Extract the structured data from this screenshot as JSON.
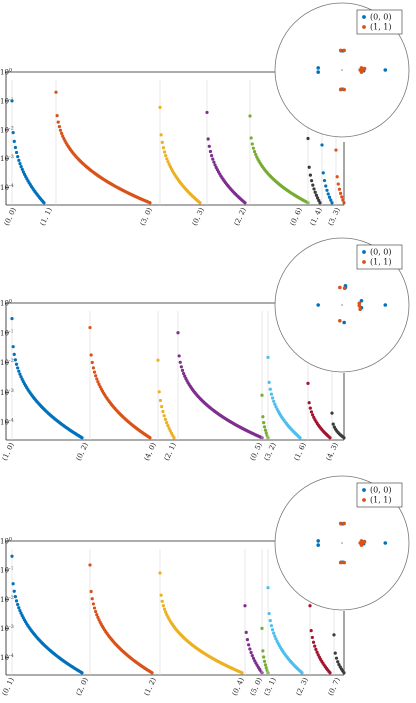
{
  "colors": {
    "blue": "#0072BD",
    "orange": "#D95319",
    "yellow": "#EDB120",
    "purple": "#7E2F8E",
    "green": "#77AC30",
    "cyan": "#4DBEEE",
    "crimson": "#A2142F",
    "gray": "#3a3a3a"
  },
  "chart_data": [
    {
      "type": "scatter",
      "yscale": "log",
      "ytick_labels": [
        "10^0",
        "10^-1",
        "10^-2",
        "10^-3",
        "10^-4"
      ],
      "groups": [
        {
          "label": "(0, 0)",
          "color": "blue",
          "start": 0.1,
          "end": 3e-05
        },
        {
          "label": "(1, 1)",
          "color": "orange",
          "start": 0.2,
          "end": 3e-05
        },
        {
          "label": "(3, 0)",
          "color": "yellow",
          "start": 0.06,
          "end": 3e-05
        },
        {
          "label": "(0, 3)",
          "color": "purple",
          "start": 0.04,
          "end": 3e-05
        },
        {
          "label": "(2, 2)",
          "color": "green",
          "start": 0.03,
          "end": 3e-05
        },
        {
          "label": "(0, 6)",
          "color": "gray",
          "start": 0.005,
          "end": 3e-05
        },
        {
          "label": "(1, 4)",
          "color": "blue",
          "start": 0.003,
          "end": 3e-05
        },
        {
          "label": "(3, 3)",
          "color": "orange",
          "start": 0.002,
          "end": 3e-05
        }
      ],
      "inset": {
        "legend": [
          "(0, 0)",
          "(1, 1)"
        ],
        "points_blue": [
          [
            -0.55,
            0.06
          ],
          [
            -0.55,
            -0.06
          ],
          [
            -0.02,
            0.55
          ],
          [
            0.02,
            0.55
          ],
          [
            -0.02,
            -0.55
          ],
          [
            0.02,
            -0.55
          ],
          [
            0.5,
            0.02
          ],
          [
            0.5,
            -0.02
          ],
          [
            1.0,
            0.0
          ]
        ],
        "points_orange": [
          [
            -0.03,
            0.56
          ],
          [
            0.05,
            0.56
          ],
          [
            -0.03,
            -0.56
          ],
          [
            0.05,
            -0.56
          ],
          [
            0.45,
            0.06
          ],
          [
            0.45,
            -0.06
          ],
          [
            0.48,
            0.0
          ],
          [
            0.52,
            0.04
          ],
          [
            0.42,
            0.0
          ]
        ]
      }
    },
    {
      "type": "scatter",
      "yscale": "log",
      "ytick_labels": [
        "10^0",
        "10^-1",
        "10^-2",
        "10^-3",
        "10^-4"
      ],
      "groups": [
        {
          "label": "(1, 0)",
          "color": "blue",
          "start": 0.3,
          "end": 3e-05
        },
        {
          "label": "(0, 2)",
          "color": "orange",
          "start": 0.15,
          "end": 3e-05
        },
        {
          "label": "(4, 0)",
          "color": "yellow",
          "start": 0.012,
          "end": 3e-05
        },
        {
          "label": "(2, 1)",
          "color": "purple",
          "start": 0.1,
          "end": 3e-05
        },
        {
          "label": "(0, 5)",
          "color": "green",
          "start": 0.0008,
          "end": 3e-05
        },
        {
          "label": "(3, 2)",
          "color": "cyan",
          "start": 0.015,
          "end": 3e-05
        },
        {
          "label": "(1, 6)",
          "color": "crimson",
          "start": 0.002,
          "end": 3e-05
        },
        {
          "label": "(4, 3)",
          "color": "gray",
          "start": 0.0002,
          "end": 3e-05
        }
      ],
      "inset": {
        "legend": [
          "(0, 0)",
          "(1, 1)"
        ],
        "points_blue": [
          [
            -0.55,
            0.0
          ],
          [
            0.08,
            0.55
          ],
          [
            0.08,
            0.5
          ],
          [
            0.05,
            -0.5
          ],
          [
            0.45,
            0.12
          ],
          [
            0.45,
            -0.08
          ],
          [
            1.0,
            0.0
          ]
        ],
        "points_orange": [
          [
            -0.05,
            0.5
          ],
          [
            0.06,
            0.48
          ],
          [
            -0.05,
            -0.45
          ],
          [
            0.4,
            0.05
          ],
          [
            0.42,
            -0.12
          ],
          [
            0.4,
            -0.02
          ]
        ]
      }
    },
    {
      "type": "scatter",
      "yscale": "log",
      "ytick_labels": [
        "10^0",
        "10^-1",
        "10^-2",
        "10^-3",
        "10^-4"
      ],
      "groups": [
        {
          "label": "(0, 1)",
          "color": "blue",
          "start": 0.3,
          "end": 3e-05
        },
        {
          "label": "(2, 0)",
          "color": "orange",
          "start": 0.15,
          "end": 3e-05
        },
        {
          "label": "(1, 2)",
          "color": "yellow",
          "start": 0.08,
          "end": 3e-05
        },
        {
          "label": "(0, 4)",
          "color": "purple",
          "start": 0.006,
          "end": 3e-05
        },
        {
          "label": "(5, 0)",
          "color": "green",
          "start": 0.001,
          "end": 3e-05
        },
        {
          "label": "(3, 1)",
          "color": "cyan",
          "start": 0.025,
          "end": 3e-05
        },
        {
          "label": "(2, 3)",
          "color": "crimson",
          "start": 0.006,
          "end": 3e-05
        },
        {
          "label": "(0, 7)",
          "color": "gray",
          "start": 0.0006,
          "end": 3e-05
        }
      ],
      "inset": {
        "legend": [
          "(0, 0)",
          "(1, 1)"
        ],
        "points_blue": [
          [
            -0.55,
            0.06
          ],
          [
            -0.55,
            -0.06
          ],
          [
            -0.02,
            0.55
          ],
          [
            0.02,
            0.55
          ],
          [
            -0.02,
            -0.55
          ],
          [
            0.02,
            -0.55
          ],
          [
            0.5,
            0.02
          ],
          [
            0.5,
            -0.02
          ],
          [
            1.0,
            0.0
          ]
        ],
        "points_orange": [
          [
            -0.03,
            0.56
          ],
          [
            0.05,
            0.56
          ],
          [
            -0.03,
            -0.56
          ],
          [
            0.05,
            -0.56
          ],
          [
            0.45,
            0.06
          ],
          [
            0.45,
            -0.06
          ],
          [
            0.48,
            0.0
          ],
          [
            0.52,
            0.04
          ],
          [
            0.42,
            0.0
          ]
        ]
      }
    }
  ]
}
